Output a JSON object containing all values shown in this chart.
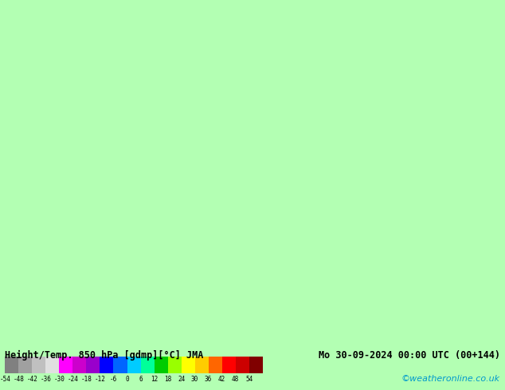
{
  "title_left": "Height/Temp. 850 hPa [gdmp][°C] JMA",
  "title_right": "Mo 30-09-2024 00:00 UTC (00+144)",
  "credit": "©weatheronline.co.uk",
  "credit_color": "#0099cc",
  "colorbar_values": [
    -54,
    -48,
    -42,
    -36,
    -30,
    -24,
    -18,
    -12,
    -6,
    0,
    6,
    12,
    18,
    24,
    30,
    36,
    42,
    48,
    54
  ],
  "colorbar_colors": [
    "#808080",
    "#a0a0a0",
    "#c0c0c0",
    "#e0e0e0",
    "#ff00ff",
    "#cc00cc",
    "#9900cc",
    "#0000ff",
    "#0066ff",
    "#00ccff",
    "#00ff99",
    "#00cc00",
    "#99ff00",
    "#ffff00",
    "#ffcc00",
    "#ff6600",
    "#ff0000",
    "#cc0000",
    "#800000"
  ],
  "bg_color": "#b3ffb3",
  "land_color": "#d0d0d0",
  "map_bg": "#b3ffb3",
  "border_color": "#999999",
  "sea_color": "#b3ffb3"
}
